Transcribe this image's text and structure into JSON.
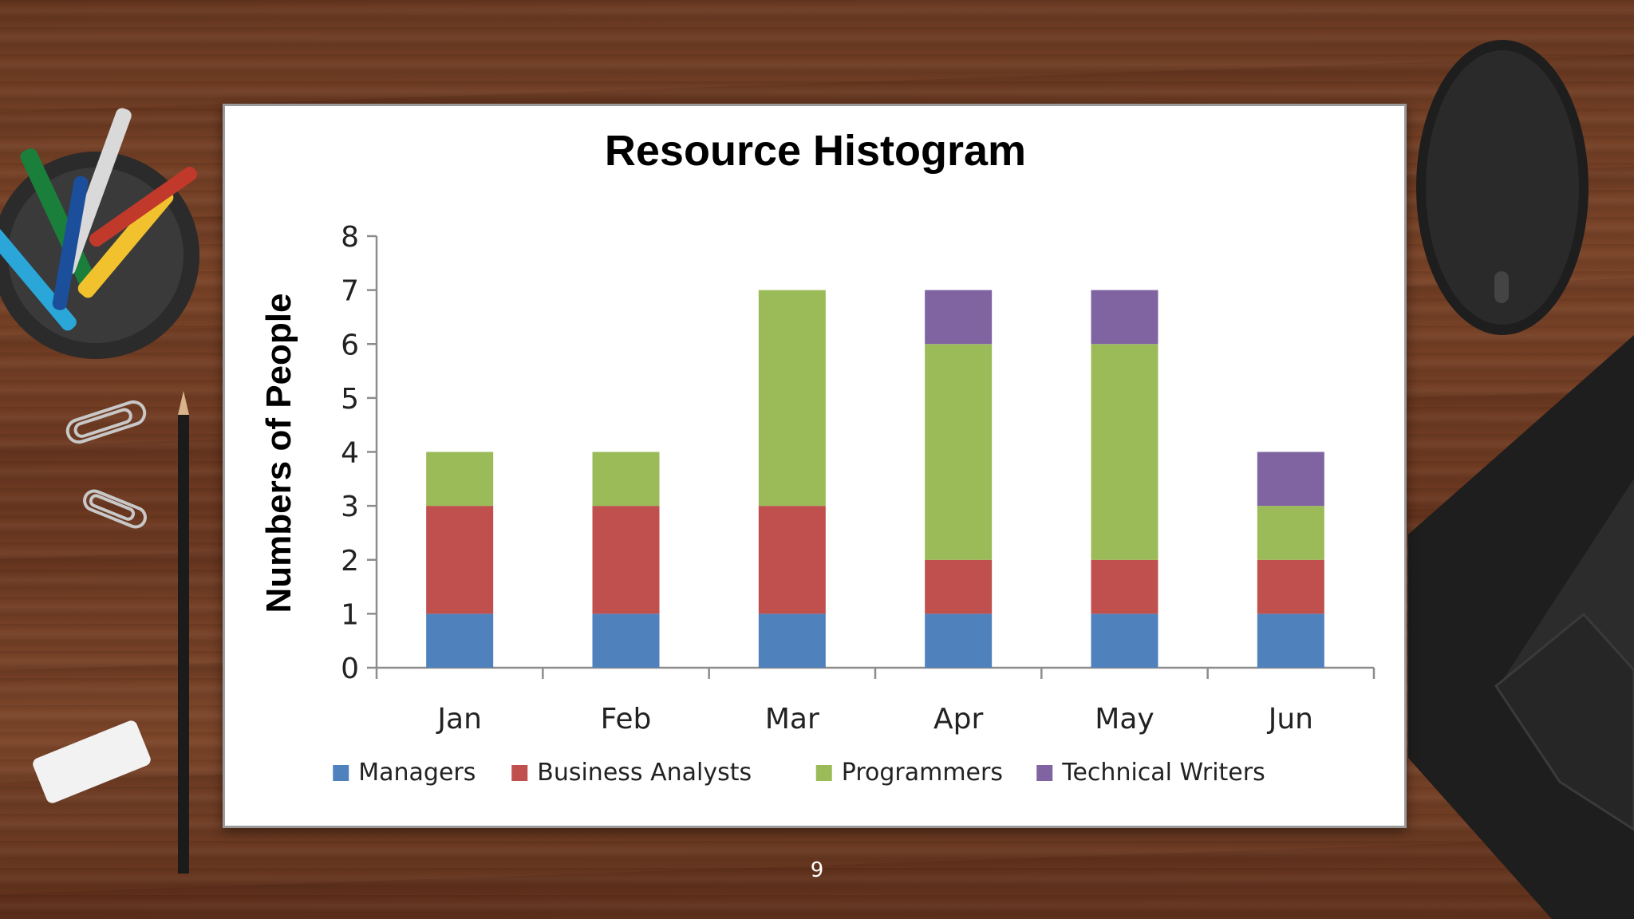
{
  "slide": {
    "page_number": "9"
  },
  "colors": {
    "managers": "#4f81bd",
    "business_analysts": "#c0504d",
    "programmers": "#9bbb59",
    "technical_writers": "#8064a2"
  },
  "chart_data": {
    "type": "bar",
    "stacked": true,
    "title": "Resource Histogram",
    "xlabel": "",
    "ylabel": "Numbers of People",
    "ylim": [
      0,
      8
    ],
    "yticks": [
      "0",
      "1",
      "2",
      "3",
      "4",
      "5",
      "6",
      "7",
      "8"
    ],
    "categories": [
      "Jan",
      "Feb",
      "Mar",
      "Apr",
      "May",
      "Jun"
    ],
    "series": [
      {
        "name": "Managers",
        "color": "#4f81bd",
        "values": [
          1,
          1,
          1,
          1,
          1,
          1
        ]
      },
      {
        "name": "Business Analysts",
        "color": "#c0504d",
        "values": [
          2,
          2,
          2,
          1,
          1,
          1
        ]
      },
      {
        "name": "Programmers",
        "color": "#9bbb59",
        "values": [
          1,
          1,
          4,
          4,
          4,
          1
        ]
      },
      {
        "name": "Technical Writers",
        "color": "#8064a2",
        "values": [
          0,
          0,
          0,
          1,
          1,
          1
        ]
      }
    ],
    "grid": false,
    "legend": "bottom"
  }
}
